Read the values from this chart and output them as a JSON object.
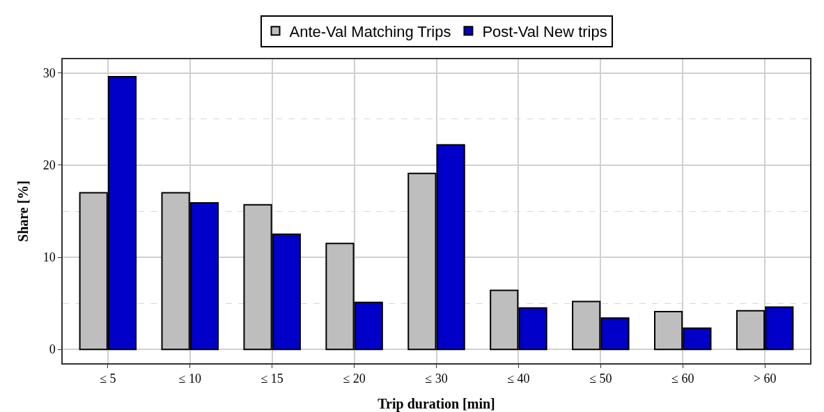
{
  "chart_data": {
    "type": "bar",
    "xlabel": "Trip duration [min]",
    "ylabel": "Share [%]",
    "categories": [
      "≤ 5",
      "≤ 10",
      "≤ 15",
      "≤ 20",
      "≤ 30",
      "≤ 40",
      "≤ 50",
      "≤ 60",
      "> 60"
    ],
    "series": [
      {
        "name": "Ante-Val Matching Trips",
        "color": "#bebebe",
        "values": [
          17.0,
          17.0,
          15.7,
          11.5,
          19.1,
          6.4,
          5.2,
          4.1,
          4.2
        ]
      },
      {
        "name": "Post-Val New trips",
        "color": "#0000c8",
        "values": [
          29.6,
          15.9,
          12.5,
          5.1,
          22.2,
          4.5,
          3.4,
          2.3,
          4.6
        ]
      }
    ],
    "ylim": [
      -1.5,
      31.5
    ],
    "yticks": [
      0,
      10,
      20,
      30
    ],
    "grid": true,
    "legend": "top"
  }
}
